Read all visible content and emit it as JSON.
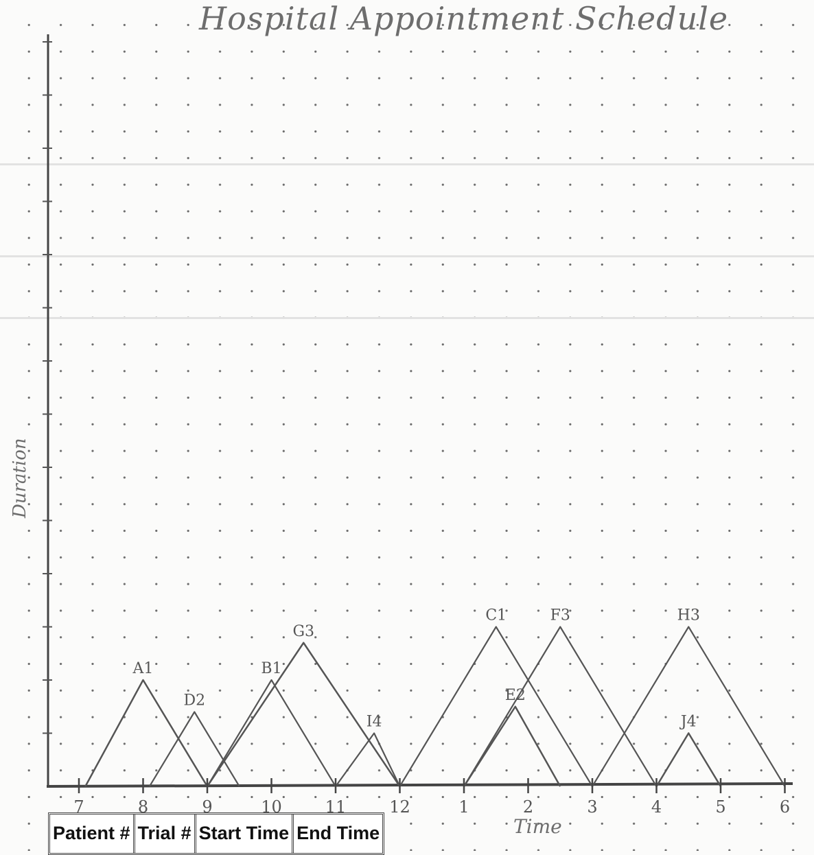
{
  "chart_data": {
    "type": "line",
    "title": "Hospital Appointment Schedule",
    "xlabel": "Time",
    "ylabel": "Duration",
    "x_tick_labels": [
      "7",
      "8",
      "9",
      "10",
      "11",
      "12",
      "1",
      "2",
      "3",
      "4",
      "5",
      "6"
    ],
    "xlim": [
      7,
      18
    ],
    "ylim": [
      0,
      14
    ],
    "series": [
      {
        "name": "A1",
        "points": [
          [
            7.1,
            0
          ],
          [
            8.0,
            2
          ],
          [
            9.0,
            0
          ]
        ]
      },
      {
        "name": "D2",
        "points": [
          [
            8.1,
            0
          ],
          [
            8.8,
            1.4
          ],
          [
            9.5,
            0
          ]
        ]
      },
      {
        "name": "B1",
        "points": [
          [
            9.0,
            0
          ],
          [
            10.0,
            2
          ],
          [
            11.0,
            0
          ]
        ]
      },
      {
        "name": "G3",
        "points": [
          [
            9.0,
            0
          ],
          [
            10.5,
            2.7
          ],
          [
            12.0,
            0
          ]
        ]
      },
      {
        "name": "I4",
        "points": [
          [
            11.0,
            0
          ],
          [
            11.6,
            1.0
          ],
          [
            12.0,
            0
          ]
        ]
      },
      {
        "name": "C1",
        "points": [
          [
            12.0,
            0
          ],
          [
            13.5,
            3
          ],
          [
            15.0,
            0
          ]
        ]
      },
      {
        "name": "E2",
        "points": [
          [
            13.0,
            0
          ],
          [
            13.8,
            1.5
          ],
          [
            14.5,
            0
          ]
        ]
      },
      {
        "name": "F3",
        "points": [
          [
            13.0,
            0
          ],
          [
            14.5,
            3
          ],
          [
            16.0,
            0
          ]
        ]
      },
      {
        "name": "H3",
        "points": [
          [
            15.0,
            0
          ],
          [
            16.5,
            3
          ],
          [
            18.0,
            0
          ]
        ]
      },
      {
        "name": "J4",
        "points": [
          [
            16.0,
            0
          ],
          [
            16.5,
            1
          ],
          [
            17.0,
            0
          ]
        ]
      }
    ],
    "grid": true,
    "legend": "none"
  },
  "table": {
    "headers": [
      "Patient #",
      "Trial #",
      "Start Time",
      "End Time"
    ]
  }
}
